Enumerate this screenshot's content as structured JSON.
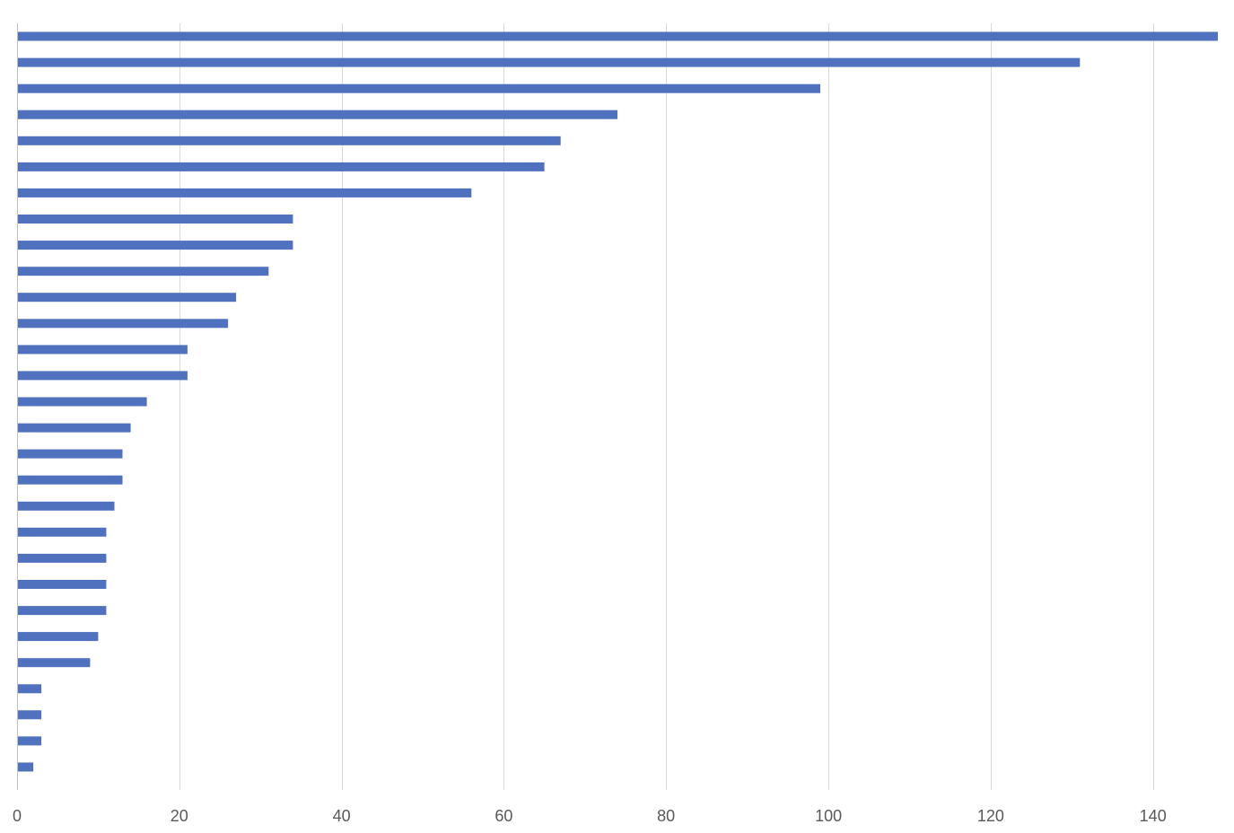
{
  "chart_data": {
    "type": "bar",
    "orientation": "horizontal",
    "title": "",
    "xlabel": "",
    "ylabel": "",
    "xlim": [
      0,
      148
    ],
    "xticks": [
      0,
      20,
      40,
      60,
      80,
      100,
      120,
      140
    ],
    "xtick_labels": [
      "0",
      "20",
      "40",
      "60",
      "80",
      "100",
      "120",
      "140"
    ],
    "grid": "vertical",
    "legend": "none",
    "bar_color": "#4f71be",
    "values": [
      148,
      131,
      99,
      74,
      67,
      65,
      56,
      34,
      34,
      31,
      27,
      26,
      21,
      21,
      16,
      14,
      13,
      13,
      12,
      11,
      11,
      11,
      11,
      10,
      9,
      3,
      3,
      3,
      2
    ]
  }
}
